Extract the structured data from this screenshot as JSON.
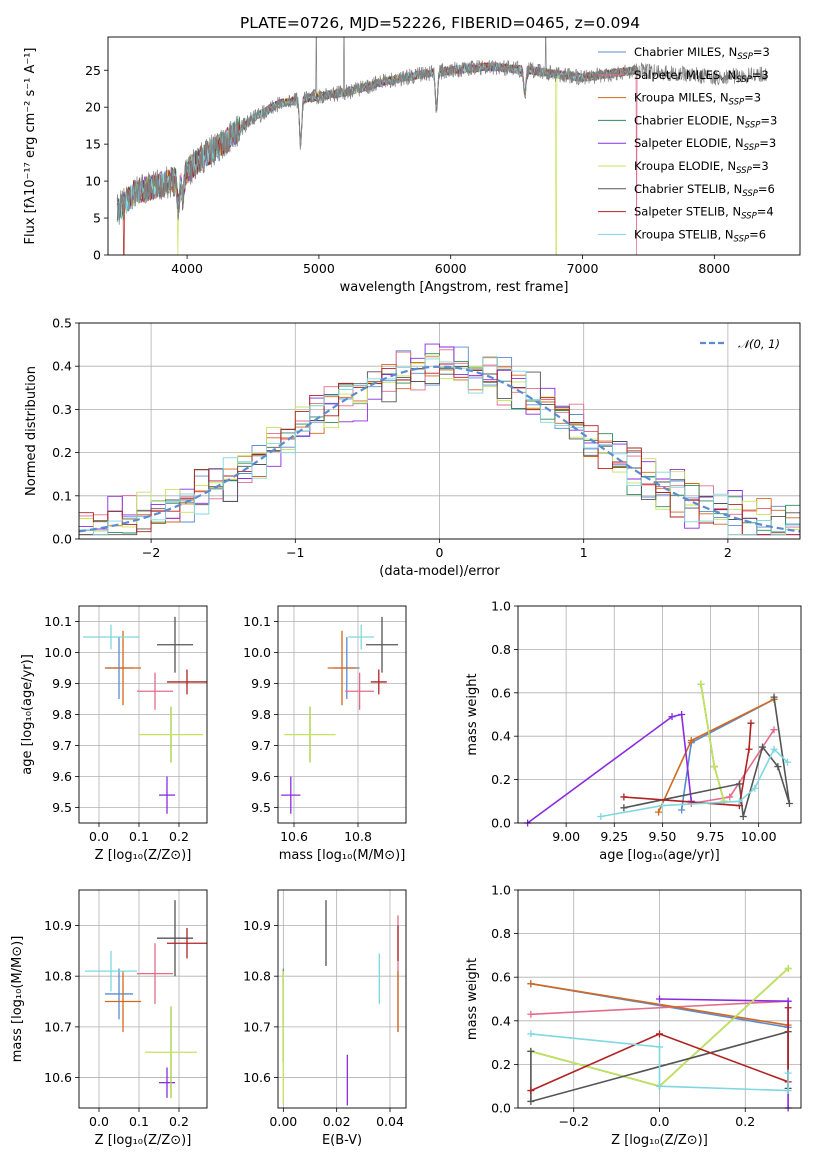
{
  "colors": {
    "Chabrier MILES": "#5b8bd1",
    "Salpeter MILES": "#e36d8a",
    "Kroupa MILES": "#d2691e",
    "Chabrier ELODIE": "#2e8b57",
    "Salpeter ELODIE": "#8a2be2",
    "Kroupa ELODIE": "#c6e45a",
    "Chabrier STELIB": "#555555",
    "Salpeter STELIB": "#b22222",
    "Kroupa STELIB": "#7fd8e0"
  },
  "chart_data": [
    {
      "id": "spectrum",
      "type": "line",
      "title": "PLATE=0726, MJD=52226, FIBERID=0465, z=0.094",
      "xlabel": "wavelength [Angstrom, rest frame]",
      "ylabel": "Flux [fλ10⁻¹⁷ erg cm⁻² s⁻¹ A⁻¹]",
      "xlim": [
        3400,
        8650
      ],
      "ylim": [
        0,
        29.5
      ],
      "xticks": [
        4000,
        5000,
        6000,
        7000,
        8000
      ],
      "yticks": [
        0,
        5,
        10,
        15,
        20,
        25
      ],
      "legend_position": "upper right",
      "legend": [
        {
          "name": "Chabrier MILES",
          "label": "Chabrier MILES, N",
          "sub": "SSP",
          "suffix": "=3"
        },
        {
          "name": "Salpeter MILES",
          "label": "Salpeter MILES, N",
          "sub": "SSP",
          "suffix": "=3"
        },
        {
          "name": "Kroupa MILES",
          "label": "Kroupa MILES, N",
          "sub": "SSP",
          "suffix": "=3"
        },
        {
          "name": "Chabrier ELODIE",
          "label": "Chabrier ELODIE, N",
          "sub": "SSP",
          "suffix": "=3"
        },
        {
          "name": "Salpeter ELODIE",
          "label": "Salpeter ELODIE, N",
          "sub": "SSP",
          "suffix": "=3"
        },
        {
          "name": "Kroupa ELODIE",
          "label": "Kroupa ELODIE, N",
          "sub": "SSP",
          "suffix": "=3"
        },
        {
          "name": "Chabrier STELIB",
          "label": "Chabrier STELIB, N",
          "sub": "SSP",
          "suffix": "=6"
        },
        {
          "name": "Salpeter STELIB",
          "label": "Salpeter STELIB, N",
          "sub": "SSP",
          "suffix": "=4"
        },
        {
          "name": "Kroupa STELIB",
          "label": "Kroupa STELIB, N",
          "sub": "SSP",
          "suffix": "=6"
        }
      ],
      "continuum": [
        [
          3470,
          6.0
        ],
        [
          3600,
          8.5
        ],
        [
          3800,
          9.5
        ],
        [
          3950,
          10.5
        ],
        [
          4100,
          13.0
        ],
        [
          4300,
          15.5
        ],
        [
          4500,
          18.5
        ],
        [
          4700,
          20.5
        ],
        [
          5000,
          21.5
        ],
        [
          5200,
          22.0
        ],
        [
          5500,
          23.5
        ],
        [
          5800,
          24.5
        ],
        [
          6000,
          25.0
        ],
        [
          6300,
          25.5
        ],
        [
          6600,
          25.0
        ],
        [
          6800,
          24.5
        ],
        [
          7000,
          24.0
        ],
        [
          7200,
          24.5
        ],
        [
          7400,
          25.0
        ],
        [
          7800,
          24.5
        ],
        [
          8000,
          24.0
        ],
        [
          8400,
          24.5
        ]
      ],
      "model_range": [
        3470,
        7420
      ],
      "features": [
        [
          3933,
          4.0
        ],
        [
          3968,
          3.0
        ],
        [
          4861,
          6.0
        ],
        [
          5892,
          5.0
        ],
        [
          6563,
          3.5
        ]
      ],
      "spikes": [
        [
          4980,
          29.5
        ],
        [
          5190,
          29.5
        ],
        [
          6720,
          29.5
        ]
      ],
      "model_drops": [
        [
          3520,
          "Salpeter STELIB"
        ],
        [
          3930,
          "Kroupa ELODIE"
        ],
        [
          6800,
          "Kroupa ELODIE"
        ],
        [
          7410,
          "Salpeter MILES"
        ]
      ]
    },
    {
      "id": "residuals",
      "type": "histogram",
      "xlabel": "(data-model)/error",
      "ylabel": "Normed distribution",
      "xlim": [
        -2.5,
        2.5
      ],
      "ylim": [
        0,
        0.5
      ],
      "xticks": [
        -2,
        -1,
        0,
        1,
        2
      ],
      "yticks": [
        0.0,
        0.1,
        0.2,
        0.3,
        0.4,
        0.5
      ],
      "bin_width": 0.1,
      "reference": {
        "name": "𝒩(0, 1)",
        "mean": 0,
        "sigma": 1,
        "style": "dashed"
      },
      "spread": {
        "Chabrier MILES": 0.045,
        "Salpeter MILES": 0.05,
        "Kroupa MILES": 0.045,
        "Chabrier ELODIE": 0.04,
        "Salpeter ELODIE": 0.06,
        "Kroupa ELODIE": 0.05,
        "Chabrier STELIB": 0.045,
        "Salpeter STELIB": 0.05,
        "Kroupa STELIB": 0.05
      }
    },
    {
      "id": "age_vs_Z",
      "type": "errorbar",
      "xlabel": "Z [log₁₀(Z/Z⊙)]",
      "ylabel": "age  [log₁₀(age/yr)]",
      "xlim": [
        -0.05,
        0.27
      ],
      "ylim": [
        9.45,
        10.15
      ],
      "xticks": [
        0.0,
        0.1,
        0.2
      ],
      "yticks": [
        9.5,
        9.6,
        9.7,
        9.8,
        9.9,
        10.0,
        10.1
      ],
      "points": [
        {
          "model": "Chabrier MILES",
          "x": 0.05,
          "xerr": 0.035,
          "y": 9.95,
          "yerr": 0.1
        },
        {
          "model": "Salpeter MILES",
          "x": 0.14,
          "xerr": 0.045,
          "y": 9.875,
          "yerr": 0.06
        },
        {
          "model": "Kroupa MILES",
          "x": 0.06,
          "xerr": 0.045,
          "y": 9.95,
          "yerr": 0.12
        },
        {
          "model": "Chabrier ELODIE",
          "x": 0.18,
          "xerr": 0.0,
          "y": 9.735,
          "yerr": 0.09
        },
        {
          "model": "Salpeter ELODIE",
          "x": 0.17,
          "xerr": 0.02,
          "y": 9.54,
          "yerr": 0.06
        },
        {
          "model": "Kroupa ELODIE",
          "x": 0.18,
          "xerr": 0.08,
          "y": 9.735,
          "yerr": 0.09
        },
        {
          "model": "Chabrier STELIB",
          "x": 0.19,
          "xerr": 0.045,
          "y": 10.025,
          "yerr": 0.09
        },
        {
          "model": "Salpeter STELIB",
          "x": 0.22,
          "xerr": 0.05,
          "y": 9.905,
          "yerr": 0.04
        },
        {
          "model": "Kroupa STELIB",
          "x": 0.03,
          "xerr": 0.07,
          "y": 10.05,
          "yerr": 0.04
        }
      ]
    },
    {
      "id": "age_vs_mass",
      "type": "errorbar",
      "xlabel": "mass [log₁₀(M/M⊙)]",
      "ylabel": "",
      "xlim": [
        10.55,
        10.95
      ],
      "ylim": [
        9.45,
        10.15
      ],
      "xticks": [
        10.6,
        10.8
      ],
      "yticks": [
        9.5,
        9.6,
        9.7,
        9.8,
        9.9,
        10.0,
        10.1
      ],
      "points": [
        {
          "model": "Chabrier MILES",
          "x": 10.765,
          "xerr": 0.04,
          "y": 9.95,
          "yerr": 0.1
        },
        {
          "model": "Salpeter MILES",
          "x": 10.805,
          "xerr": 0.045,
          "y": 9.875,
          "yerr": 0.06
        },
        {
          "model": "Kroupa MILES",
          "x": 10.75,
          "xerr": 0.045,
          "y": 9.95,
          "yerr": 0.12
        },
        {
          "model": "Chabrier ELODIE",
          "x": 10.65,
          "xerr": 0.0,
          "y": 9.735,
          "yerr": 0.09
        },
        {
          "model": "Salpeter ELODIE",
          "x": 10.59,
          "xerr": 0.03,
          "y": 9.54,
          "yerr": 0.06
        },
        {
          "model": "Kroupa ELODIE",
          "x": 10.65,
          "xerr": 0.08,
          "y": 9.735,
          "yerr": 0.09
        },
        {
          "model": "Chabrier STELIB",
          "x": 10.875,
          "xerr": 0.05,
          "y": 10.025,
          "yerr": 0.09
        },
        {
          "model": "Salpeter STELIB",
          "x": 10.865,
          "xerr": 0.025,
          "y": 9.905,
          "yerr": 0.04
        },
        {
          "model": "Kroupa STELIB",
          "x": 10.81,
          "xerr": 0.04,
          "y": 10.05,
          "yerr": 0.04
        }
      ]
    },
    {
      "id": "weight_vs_age",
      "type": "line",
      "xlabel": "age  [log₁₀(age/yr)]",
      "ylabel": "mass weight",
      "xlim": [
        8.75,
        10.22
      ],
      "ylim": [
        0.0,
        1.0
      ],
      "xticks": [
        9.0,
        9.25,
        9.5,
        9.75,
        10.0
      ],
      "yticks": [
        0.0,
        0.2,
        0.4,
        0.6,
        0.8,
        1.0
      ],
      "series": [
        {
          "model": "Chabrier MILES",
          "points": [
            [
              9.6,
              0.06
            ],
            [
              9.65,
              0.37
            ],
            [
              10.08,
              0.57
            ]
          ]
        },
        {
          "model": "Salpeter MILES",
          "points": [
            [
              9.65,
              0.09
            ],
            [
              9.85,
              0.12
            ],
            [
              10.08,
              0.43
            ]
          ]
        },
        {
          "model": "Kroupa MILES",
          "points": [
            [
              9.48,
              0.05
            ],
            [
              9.65,
              0.38
            ],
            [
              10.08,
              0.57
            ]
          ]
        },
        {
          "model": "Chabrier ELODIE",
          "points": [
            [
              9.7,
              0.64
            ],
            [
              9.77,
              0.26
            ],
            [
              9.82,
              0.1
            ]
          ]
        },
        {
          "model": "Salpeter ELODIE",
          "points": [
            [
              8.8,
              0.0
            ],
            [
              9.55,
              0.49
            ],
            [
              9.6,
              0.5
            ],
            [
              9.65,
              0.1
            ]
          ]
        },
        {
          "model": "Kroupa ELODIE",
          "points": [
            [
              9.7,
              0.64
            ],
            [
              9.77,
              0.26
            ],
            [
              9.82,
              0.1
            ]
          ]
        },
        {
          "model": "Chabrier STELIB",
          "points": [
            [
              9.3,
              0.07
            ],
            [
              9.9,
              0.18
            ],
            [
              9.92,
              0.03
            ],
            [
              10.02,
              0.35
            ],
            [
              10.1,
              0.26
            ],
            [
              10.16,
              0.09
            ],
            [
              10.08,
              0.58
            ]
          ]
        },
        {
          "model": "Salpeter STELIB",
          "points": [
            [
              9.3,
              0.12
            ],
            [
              9.9,
              0.08
            ],
            [
              9.95,
              0.34
            ],
            [
              9.96,
              0.46
            ]
          ]
        },
        {
          "model": "Kroupa STELIB",
          "points": [
            [
              9.18,
              0.03
            ],
            [
              9.5,
              0.08
            ],
            [
              9.9,
              0.1
            ],
            [
              9.98,
              0.16
            ],
            [
              10.08,
              0.34
            ],
            [
              10.15,
              0.28
            ]
          ]
        }
      ]
    },
    {
      "id": "mass_vs_Z",
      "type": "errorbar",
      "xlabel": "Z [log₁₀(Z/Z⊙)]",
      "ylabel": "mass [log₁₀(M/M⊙)]",
      "xlim": [
        -0.05,
        0.27
      ],
      "ylim": [
        10.54,
        10.97
      ],
      "xticks": [
        0.0,
        0.1,
        0.2
      ],
      "yticks": [
        10.6,
        10.7,
        10.8,
        10.9
      ],
      "points": [
        {
          "model": "Chabrier MILES",
          "x": 0.05,
          "xerr": 0.035,
          "y": 10.765,
          "yerr": 0.05
        },
        {
          "model": "Salpeter MILES",
          "x": 0.14,
          "xerr": 0.045,
          "y": 10.805,
          "yerr": 0.06
        },
        {
          "model": "Kroupa MILES",
          "x": 0.06,
          "xerr": 0.045,
          "y": 10.75,
          "yerr": 0.06
        },
        {
          "model": "Chabrier ELODIE",
          "x": 0.18,
          "xerr": 0.0,
          "y": 10.65,
          "yerr": 0.09
        },
        {
          "model": "Salpeter ELODIE",
          "x": 0.17,
          "xerr": 0.02,
          "y": 10.59,
          "yerr": 0.03
        },
        {
          "model": "Kroupa ELODIE",
          "x": 0.18,
          "xerr": 0.065,
          "y": 10.65,
          "yerr": 0.09
        },
        {
          "model": "Chabrier STELIB",
          "x": 0.19,
          "xerr": 0.045,
          "y": 10.875,
          "yerr": 0.075
        },
        {
          "model": "Salpeter STELIB",
          "x": 0.22,
          "xerr": 0.05,
          "y": 10.865,
          "yerr": 0.03
        },
        {
          "model": "Kroupa STELIB",
          "x": 0.03,
          "xerr": 0.065,
          "y": 10.81,
          "yerr": 0.04
        }
      ]
    },
    {
      "id": "mass_vs_ebv",
      "type": "errorbar",
      "xlabel": "E(B-V)",
      "ylabel": "",
      "xlim": [
        -0.002,
        0.046
      ],
      "ylim": [
        10.54,
        10.97
      ],
      "xticks": [
        0.0,
        0.02,
        0.04
      ],
      "yticks": [
        10.6,
        10.7,
        10.8,
        10.9
      ],
      "points": [
        {
          "model": "Chabrier MILES",
          "x": 0.0,
          "xerr": 0.0,
          "y": 10.765,
          "yerr": 0.05
        },
        {
          "model": "Salpeter MILES",
          "x": 0.043,
          "xerr": 0.0,
          "y": 10.805,
          "yerr": 0.115
        },
        {
          "model": "Kroupa MILES",
          "x": 0.043,
          "xerr": 0.0,
          "y": 10.75,
          "yerr": 0.06
        },
        {
          "model": "Chabrier ELODIE",
          "x": 0.0,
          "xerr": 0.0,
          "y": 10.72,
          "yerr": 0.09
        },
        {
          "model": "Salpeter ELODIE",
          "x": 0.024,
          "xerr": 0.0,
          "y": 10.595,
          "yerr": 0.05
        },
        {
          "model": "Kroupa ELODIE",
          "x": 0.0,
          "xerr": 0.0,
          "y": 10.68,
          "yerr": 0.13
        },
        {
          "model": "Chabrier STELIB",
          "x": 0.016,
          "xerr": 0.0,
          "y": 10.885,
          "yerr": 0.065
        },
        {
          "model": "Salpeter STELIB",
          "x": 0.043,
          "xerr": 0.0,
          "y": 10.865,
          "yerr": 0.035
        },
        {
          "model": "Kroupa STELIB",
          "x": 0.036,
          "xerr": 0.0,
          "y": 10.795,
          "yerr": 0.05
        }
      ]
    },
    {
      "id": "weight_vs_Z",
      "type": "line",
      "xlabel": "Z [log₁₀(Z/Z⊙)]",
      "ylabel": "mass weight",
      "xlim": [
        -0.33,
        0.33
      ],
      "ylim": [
        0.0,
        1.0
      ],
      "xticks": [
        -0.2,
        0.0,
        0.2
      ],
      "yticks": [
        0.0,
        0.2,
        0.4,
        0.6,
        0.8,
        1.0
      ],
      "series": [
        {
          "model": "Chabrier MILES",
          "points": [
            [
              -0.3,
              0.57
            ],
            [
              0.3,
              0.37
            ]
          ]
        },
        {
          "model": "Salpeter MILES",
          "points": [
            [
              -0.3,
              0.43
            ],
            [
              0.3,
              0.49
            ]
          ]
        },
        {
          "model": "Kroupa MILES",
          "points": [
            [
              -0.3,
              0.57
            ],
            [
              0.3,
              0.38
            ]
          ]
        },
        {
          "model": "Chabrier ELODIE",
          "points": [
            [
              -0.3,
              0.26
            ],
            [
              0.0,
              0.1
            ],
            [
              0.3,
              0.64
            ]
          ]
        },
        {
          "model": "Salpeter ELODIE",
          "points": [
            [
              0.0,
              0.5
            ],
            [
              0.3,
              0.49
            ],
            [
              0.3,
              0.0
            ]
          ]
        },
        {
          "model": "Kroupa ELODIE",
          "points": [
            [
              -0.3,
              0.26
            ],
            [
              0.0,
              0.1
            ],
            [
              0.3,
              0.64
            ]
          ]
        },
        {
          "model": "Chabrier STELIB",
          "points": [
            [
              -0.3,
              0.26
            ],
            [
              -0.3,
              0.03
            ],
            [
              0.3,
              0.35
            ],
            [
              0.3,
              0.09
            ]
          ]
        },
        {
          "model": "Salpeter STELIB",
          "points": [
            [
              -0.3,
              0.08
            ],
            [
              0.0,
              0.34
            ],
            [
              0.3,
              0.12
            ],
            [
              0.3,
              0.46
            ]
          ]
        },
        {
          "model": "Kroupa STELIB",
          "points": [
            [
              -0.3,
              0.34
            ],
            [
              0.0,
              0.28
            ],
            [
              0.0,
              0.1
            ],
            [
              0.3,
              0.08
            ],
            [
              0.3,
              0.16
            ]
          ]
        }
      ]
    }
  ]
}
